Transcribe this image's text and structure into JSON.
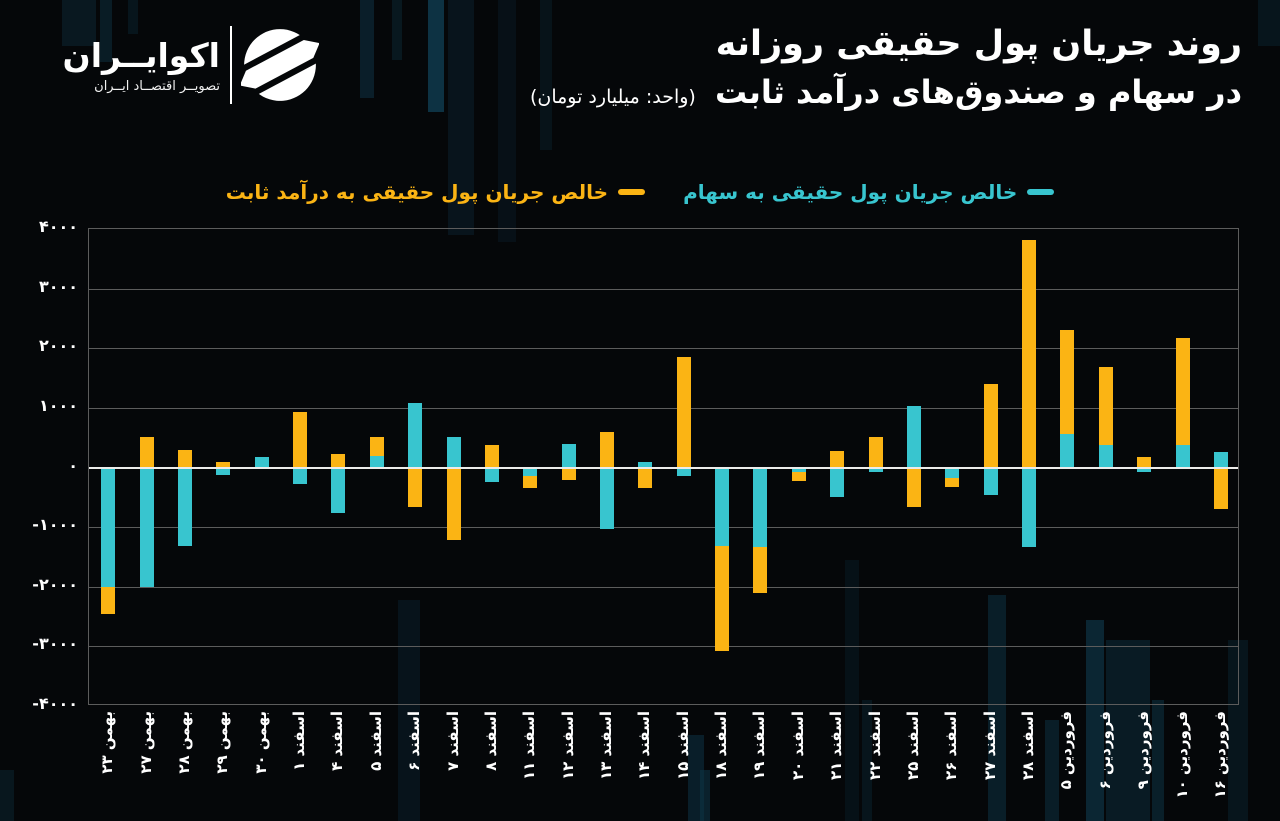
{
  "brand": {
    "name": "اکوایــران",
    "tagline": "تصویــر اقتصــاد ایــران"
  },
  "title": {
    "line1": "روند جریان پول حقیقی روزانه",
    "line2": "در سهام و صندوق‌های درآمد ثابت",
    "unit": "(واحد: میلیارد تومان)"
  },
  "colors": {
    "stocks": "#38C5CF",
    "fixed_income": "#FBB414",
    "grid": "#5c5c5c",
    "zero_line": "#ececea",
    "background": "#050709",
    "text": "#ffffff"
  },
  "chart_data": {
    "type": "bar",
    "title": "روند جریان پول حقیقی روزانه در سهام و صندوق‌های درآمد ثابت",
    "unit": "میلیارد تومان",
    "categories": [
      "بهمن ۲۳",
      "بهمن ۲۷",
      "بهمن ۲۸",
      "بهمن ۲۹",
      "بهمن ۳۰",
      "اسفند ۱",
      "اسفند ۴",
      "اسفند ۵",
      "اسفند ۶",
      "اسفند ۷",
      "اسفند ۸",
      "اسفند ۱۱",
      "اسفند ۱۲",
      "اسفند ۱۳",
      "اسفند ۱۴",
      "اسفند ۱۵",
      "اسفند ۱۸",
      "اسفند ۱۹",
      "اسفند ۲۰",
      "اسفند ۲۱",
      "اسفند ۲۲",
      "اسفند ۲۵",
      "اسفند ۲۶",
      "اسفند ۲۷",
      "اسفند ۲۸",
      "فروردین ۵",
      "فروردین ۶",
      "فروردین ۹",
      "فروردین ۱۰",
      "فروردین ۱۶"
    ],
    "series": [
      {
        "name": "خالص جریان پول حقیقی به سهام",
        "color": "#38C5CF",
        "values": [
          -2000,
          -2010,
          -1320,
          -120,
          170,
          -275,
          -770,
          200,
          1090,
          520,
          -250,
          -140,
          390,
          -1030,
          100,
          -140,
          -1310,
          -1340,
          -80,
          -500,
          -70,
          1040,
          -180,
          -465,
          -1330,
          570,
          375,
          -70,
          375,
          265
        ]
      },
      {
        "name": "خالص جریان پول حقیقی به درآمد ثابت",
        "color": "#FBB414",
        "values": [
          -2450,
          520,
          290,
          100,
          0,
          940,
          235,
          520,
          -655,
          -1210,
          370,
          -350,
          -210,
          600,
          -335,
          1860,
          -3070,
          -2100,
          -230,
          285,
          520,
          -670,
          -320,
          1405,
          3820,
          2300,
          1680,
          180,
          2180,
          -690
        ]
      }
    ],
    "ylim": [
      -4000,
      4000
    ],
    "ytick_step": 1000,
    "ytick_labels": [
      "۴۰۰۰",
      "۳۰۰۰",
      "۲۰۰۰",
      "۱۰۰۰",
      "۰",
      "-۱۰۰۰",
      "-۲۰۰۰",
      "-۳۰۰۰",
      "-۴۰۰۰"
    ],
    "grid": "horizontal",
    "legend_position": "top-center",
    "bar_overlap": "yellow-behind-cyan"
  }
}
